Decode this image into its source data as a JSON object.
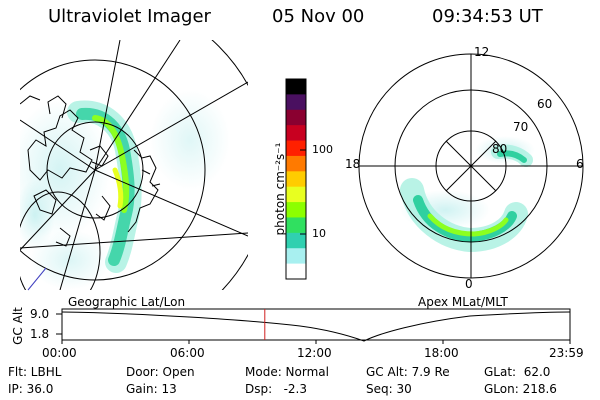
{
  "header": {
    "title": "Ultraviolet Imager",
    "date": "05 Nov 00",
    "time": "09:34:53 UT"
  },
  "left_panel": {
    "caption": "Geographic Lat/Lon"
  },
  "right_panel": {
    "caption": "Apex MLat/MLT",
    "mlt_labels": [
      "12",
      "18",
      "6",
      "0"
    ],
    "mlat_labels": [
      "60",
      "70",
      "80"
    ]
  },
  "colorbar": {
    "unit_label": "photon cm⁻²s⁻¹",
    "ticks": [
      "100",
      "10"
    ],
    "scale": "log",
    "colors": [
      "#000000",
      "#4a1060",
      "#8a0030",
      "#c80020",
      "#ff2000",
      "#ff7a00",
      "#ffcc00",
      "#e8ff20",
      "#8cff00",
      "#30e060",
      "#30d0b0",
      "#a8f0f0",
      "#ffffff"
    ]
  },
  "altitude_plot": {
    "ylabel": "GC Alt",
    "yticks": [
      "9.0",
      "1.8"
    ],
    "xticks": [
      "00:00",
      "06:00",
      "12:00",
      "18:00",
      "23:59"
    ],
    "current_time_hours": 9.58,
    "marker_color": "#d02020"
  },
  "info": {
    "flt": "Flt: LBHL",
    "ip": "IP: 36.0",
    "door": "Door: Open",
    "gain": "Gain: 13",
    "mode": "Mode: Normal",
    "dsp": "Dsp:   -2.3",
    "gcalt": "GC Alt: 7.9 Re",
    "seq": "Seq: 30",
    "glat": "GLat:  62.0",
    "glon": "GLon: 218.6"
  }
}
